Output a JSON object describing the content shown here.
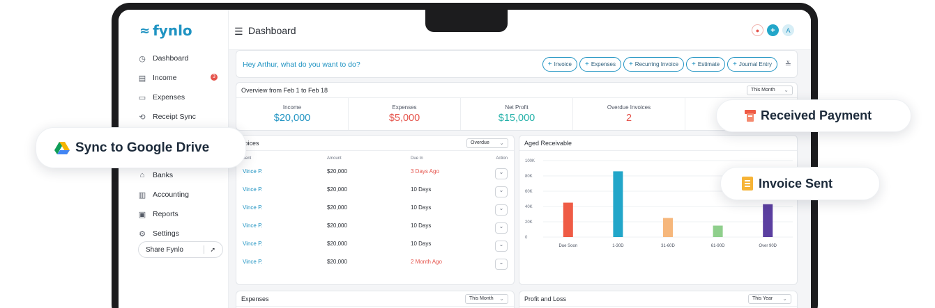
{
  "brand": {
    "name": "fynlo",
    "color": "#1f93c2"
  },
  "sidebar": {
    "items": [
      {
        "label": "Dashboard",
        "icon": "clock-icon"
      },
      {
        "label": "Income",
        "icon": "receipt-icon",
        "badge": "3"
      },
      {
        "label": "Expenses",
        "icon": "wallet-icon"
      },
      {
        "label": "Receipt Sync",
        "icon": "sync-icon"
      },
      {
        "label": "Banks",
        "icon": "bank-icon"
      },
      {
        "label": "Accounting",
        "icon": "ledger-icon"
      },
      {
        "label": "Reports",
        "icon": "report-icon"
      },
      {
        "label": "Settings",
        "icon": "gear-icon"
      }
    ],
    "share_label": "Share Fynlo"
  },
  "topbar": {
    "title": "Dashboard",
    "avatar_initial": "A"
  },
  "quick_actions": {
    "greeting": "Hey Arthur, what do you want to do?",
    "buttons": [
      "Invoice",
      "Expenses",
      "Recurring Invoice",
      "Estimate",
      "Journal Entry"
    ]
  },
  "overview": {
    "title": "Overview from Feb 1 to Feb 18",
    "period": "This Month",
    "metrics": [
      {
        "label": "Income",
        "value": "$20,000",
        "color": "#1f93c2"
      },
      {
        "label": "Expenses",
        "value": "$5,000",
        "color": "#e5534b"
      },
      {
        "label": "Net Profit",
        "value": "$15,000",
        "color": "#22b0a8"
      },
      {
        "label": "Overdue Invoices",
        "value": "2",
        "color": "#e5534b"
      },
      {
        "label": "",
        "value": "",
        "color": "#2b2f36"
      }
    ]
  },
  "invoices": {
    "title": "voices",
    "filter": "Overdue",
    "headers": {
      "client": "Sent",
      "amount": "Amount",
      "due": "Due In",
      "action": "Action"
    },
    "rows": [
      {
        "client": "Vince P.",
        "amount": "$20,000",
        "due": "3 Days Ago",
        "overdue": true
      },
      {
        "client": "Vince P.",
        "amount": "$20,000",
        "due": "10 Days",
        "overdue": false
      },
      {
        "client": "Vince P.",
        "amount": "$20,000",
        "due": "10 Days",
        "overdue": false
      },
      {
        "client": "Vince P.",
        "amount": "$20,000",
        "due": "10 Days",
        "overdue": false
      },
      {
        "client": "Vince P.",
        "amount": "$20,000",
        "due": "10 Days",
        "overdue": false
      },
      {
        "client": "Vince P.",
        "amount": "$20,000",
        "due": "2 Month Ago",
        "overdue": true
      }
    ]
  },
  "aged_receivable": {
    "title": "Aged Receivable"
  },
  "chart_data": {
    "type": "bar",
    "title": "Aged Receivable",
    "categories": [
      "Due Soon",
      "1-30D",
      "31-60D",
      "61-90D",
      "Over 90D"
    ],
    "values": [
      45000,
      86000,
      25000,
      15000,
      43000
    ],
    "colors": [
      "#ef5b45",
      "#22a6c9",
      "#f6b77c",
      "#8fcf8c",
      "#5b3fa0"
    ],
    "ylim": [
      0,
      100000
    ],
    "yticks": [
      "0",
      "20K",
      "40K",
      "60K",
      "80K",
      "100K"
    ],
    "grid": true,
    "xlabel": "",
    "ylabel": ""
  },
  "expenses_card": {
    "title": "Expenses",
    "period": "This Month"
  },
  "profit_loss_card": {
    "title": "Profit and Loss",
    "period": "This Year"
  },
  "callouts": {
    "drive": "Sync to Google Drive",
    "received": "Received Payment",
    "sent": "Invoice Sent"
  }
}
